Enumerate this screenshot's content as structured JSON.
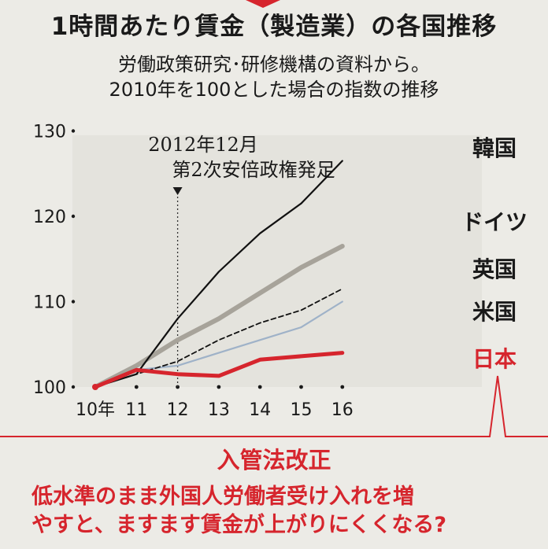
{
  "header": {
    "title": "1時間あたり賃金（製造業）の各国推移",
    "subtitle1": "労働政策研究･研修機構の資料から。",
    "subtitle2": "2010年を100とした場合の指数の推移"
  },
  "chart_data": {
    "type": "line",
    "x_labels": [
      "10年",
      "11",
      "12",
      "13",
      "14",
      "15",
      "16"
    ],
    "x": [
      2010,
      2011,
      2012,
      2013,
      2014,
      2015,
      2016
    ],
    "yticks": [
      "100",
      "110",
      "120",
      "130"
    ],
    "ylim": [
      100,
      130
    ],
    "annotation": {
      "line1": "2012年12月",
      "line2": "第2次安倍政権発足",
      "x": 2012.0
    },
    "series": [
      {
        "name": "韓国",
        "color": "#111111",
        "values": [
          100,
          101.5,
          108,
          113.5,
          118,
          121.5,
          126.5
        ]
      },
      {
        "name": "ドイツ",
        "color": "#a7a39a",
        "values": [
          100,
          102.5,
          105.5,
          108,
          111,
          114,
          116.5
        ]
      },
      {
        "name": "英国",
        "color": "#111111",
        "values": [
          100,
          101.5,
          103,
          105.5,
          107.5,
          109,
          111.5
        ]
      },
      {
        "name": "米国",
        "color": "#9fb2c8",
        "values": [
          100,
          102,
          102.5,
          104,
          105.5,
          107,
          110
        ]
      },
      {
        "name": "日本",
        "color": "#d6252d",
        "values": [
          100,
          102,
          101.5,
          101.3,
          103.2,
          103.6,
          104
        ]
      }
    ]
  },
  "footer": {
    "banner": "入管法改正",
    "line1": "低水準のまま外国人労働者受け入れを増",
    "line2": "やすと、ますます賃金が上がりにくくなる?"
  }
}
